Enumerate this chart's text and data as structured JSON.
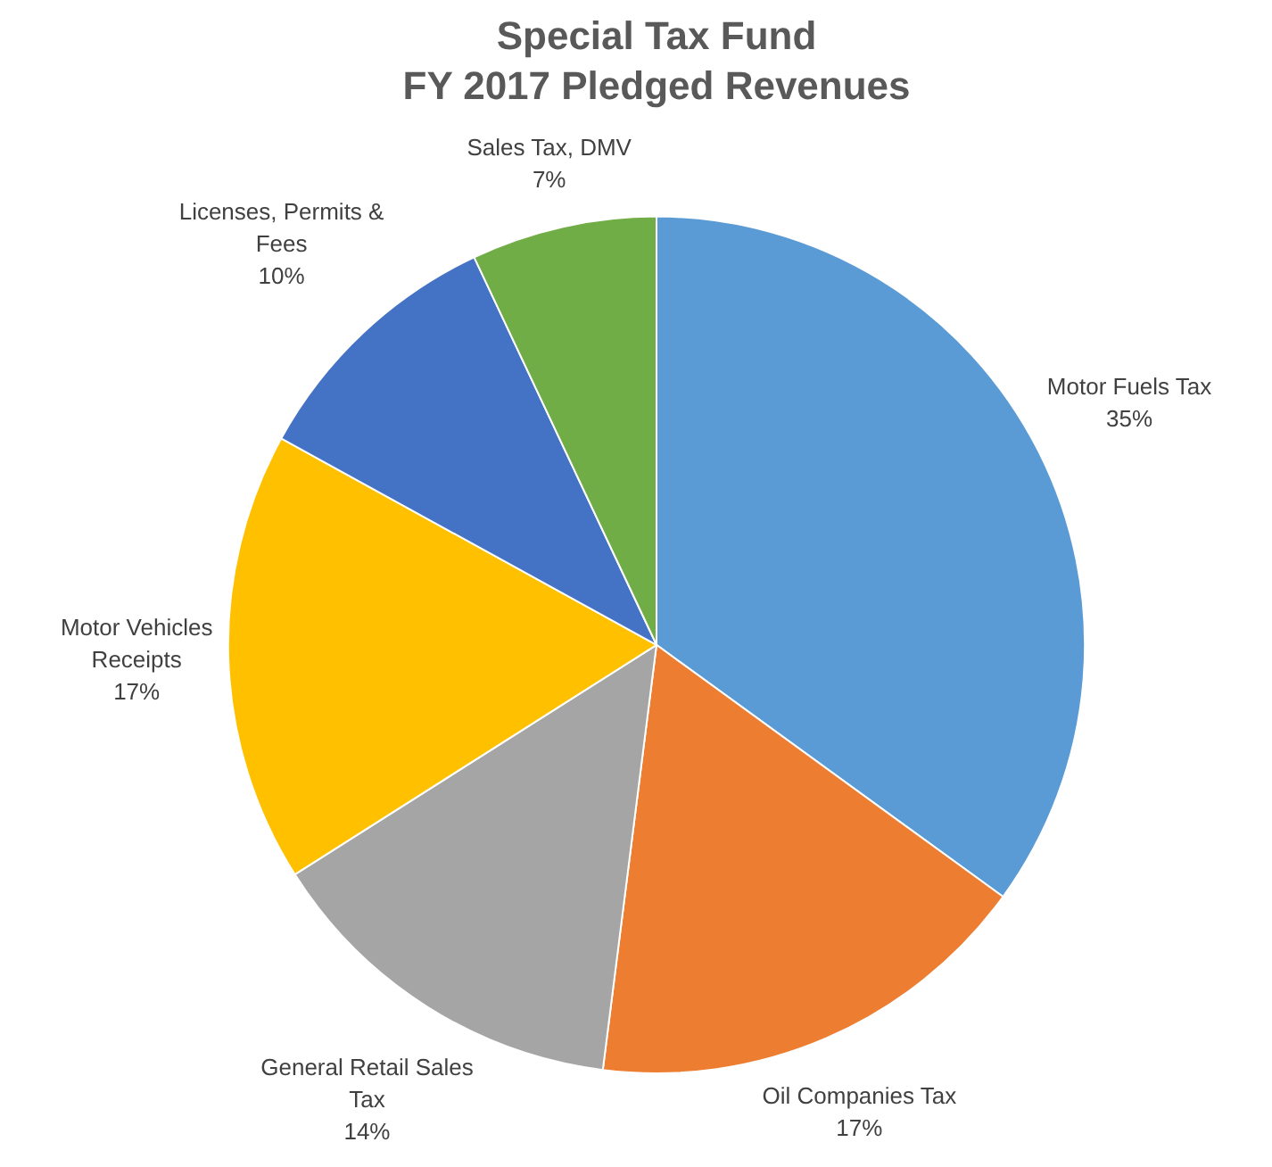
{
  "chart_data": {
    "type": "pie",
    "title": "Special Tax Fund",
    "subtitle": "FY 2017 Pledged Revenues",
    "categories": [
      "Motor Fuels Tax",
      "Oil Companies Tax",
      "General Retail Sales Tax",
      "Motor Vehicles Receipts",
      "Licenses, Permits & Fees",
      "Sales Tax, DMV"
    ],
    "values": [
      35,
      17,
      14,
      17,
      10,
      7
    ],
    "value_labels": [
      "35%",
      "17%",
      "14%",
      "17%",
      "10%",
      "7%"
    ],
    "colors": [
      "#5b9bd5",
      "#ed7d31",
      "#a5a5a5",
      "#ffc000",
      "#4472c4",
      "#70ad47"
    ],
    "legend": false
  }
}
